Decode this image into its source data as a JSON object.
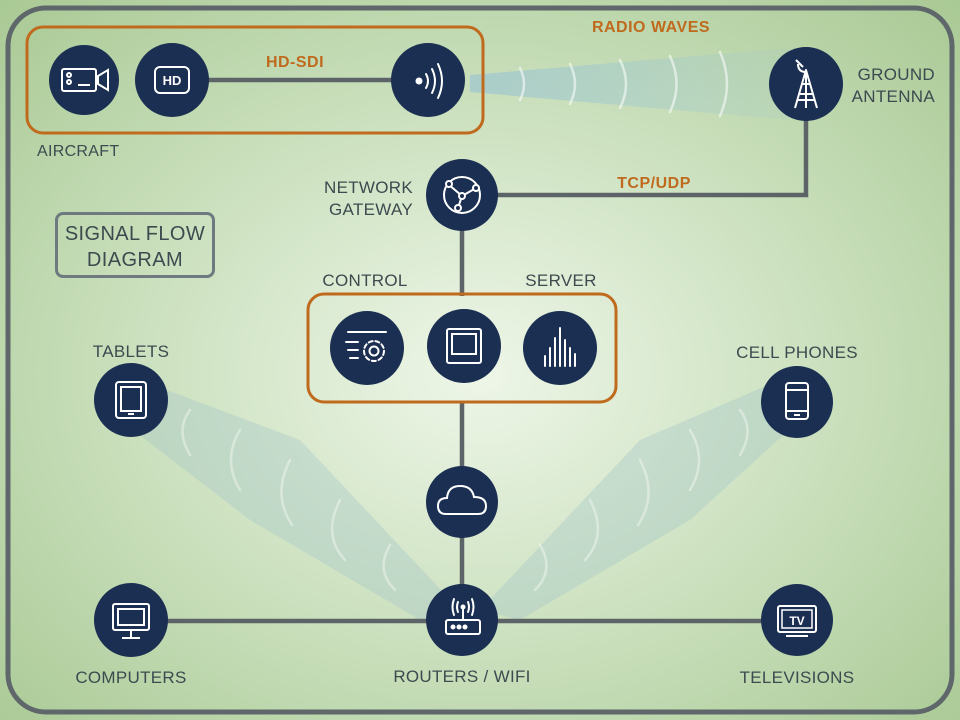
{
  "labels": {
    "radio_waves": "RADIO WAVES",
    "hd_sdi": "HD-SDI",
    "tcp_udp": "TCP/UDP",
    "aircraft": "AIRCRAFT",
    "ground_antenna_line1": "GROUND",
    "ground_antenna_line2": "ANTENNA",
    "network_gateway_line1": "NETWORK",
    "network_gateway_line2": "GATEWAY",
    "control": "CONTROL",
    "server": "SERVER",
    "tablets": "TABLETS",
    "cell_phones": "CELL PHONES",
    "computers": "COMPUTERS",
    "routers_wifi": "ROUTERS / WIFI",
    "televisions": "TELEVISIONS"
  },
  "title": {
    "line1": "SIGNAL FLOW",
    "line2": "DIAGRAM"
  },
  "icons": {
    "hd_badge": "HD",
    "tv_badge": "TV"
  },
  "colors": {
    "node_fill": "#1b2f52",
    "accent": "#bf6a1d",
    "line": "#5c6468",
    "background": "#b9d6a6"
  }
}
